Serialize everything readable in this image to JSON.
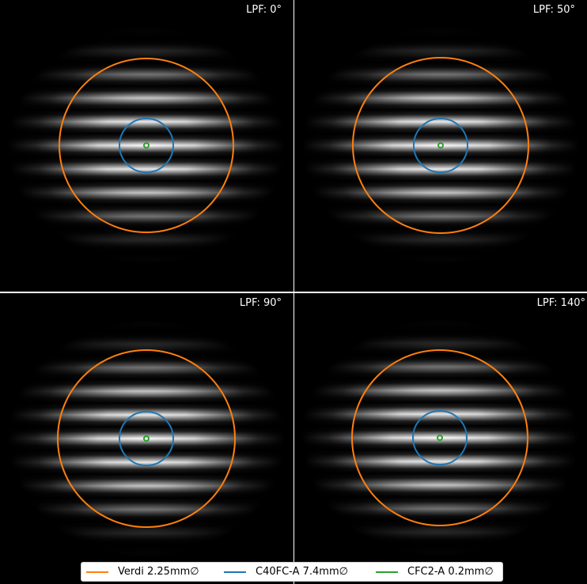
{
  "panels": [
    {
      "label": "LPF: 0°",
      "polarizer_angle_deg": 0
    },
    {
      "label": "LPF: 50°",
      "polarizer_angle_deg": 50
    },
    {
      "label": "LPF: 90°",
      "polarizer_angle_deg": 90
    },
    {
      "label": "LPF: 140°",
      "polarizer_angle_deg": 140
    }
  ],
  "legend": [
    {
      "label": "Verdi 2.25mm∅",
      "color": "#ff7f0e"
    },
    {
      "label": "C40FC-A 7.4mm∅",
      "color": "#1f77b4"
    },
    {
      "label": "CFC2-A 0.2mm∅",
      "color": "#2ca02c"
    }
  ],
  "colors": {
    "background": "#000000",
    "fringes": "#ffffff",
    "divider": "#ffffff"
  }
}
